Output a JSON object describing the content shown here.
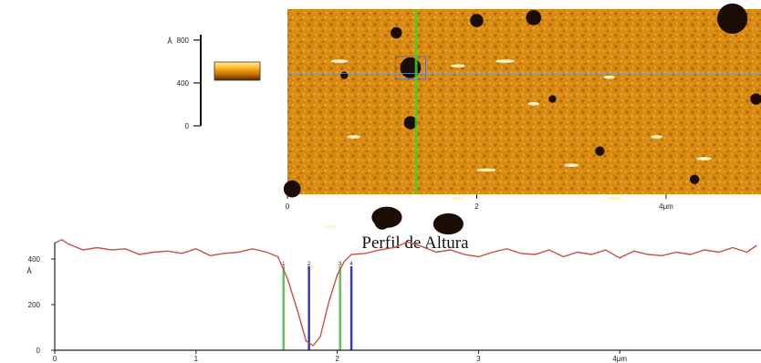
{
  "chart_data": [
    {
      "type": "heatmap",
      "title": "",
      "colorbar": {
        "unit": "Å",
        "ticks": [
          "0",
          "400",
          "800"
        ],
        "tick_values": [
          0,
          400,
          800
        ],
        "range": [
          0,
          850
        ],
        "colors": [
          "#5a2400",
          "#c06a00",
          "#ffb020",
          "#fff2a0"
        ]
      },
      "x_axis": {
        "ticks": [
          "0",
          "2",
          "4μm"
        ],
        "tick_values": [
          0,
          2,
          4
        ],
        "range": [
          0,
          5.6
        ]
      },
      "colors": {
        "base": "#d98a10",
        "pit": "#1a0d05",
        "bright": "#fff4c8",
        "scan_line": "#33dd22"
      },
      "features": {
        "pits_um": [
          {
            "x": 1.15,
            "y": 0.25,
            "r": 0.06
          },
          {
            "x": 2.0,
            "y": 0.12,
            "r": 0.07
          },
          {
            "x": 2.6,
            "y": 0.09,
            "r": 0.08
          },
          {
            "x": 4.7,
            "y": 0.1,
            "r": 0.16
          },
          {
            "x": 1.3,
            "y": 1.2,
            "r": 0.07
          },
          {
            "x": 3.3,
            "y": 1.5,
            "r": 0.05
          },
          {
            "x": 4.95,
            "y": 0.95,
            "r": 0.06
          },
          {
            "x": 5.5,
            "y": 0.35,
            "r": 0.05
          },
          {
            "x": 0.05,
            "y": 1.9,
            "r": 0.09
          },
          {
            "x": 1.0,
            "y": 2.25,
            "r": 0.08
          },
          {
            "x": 4.3,
            "y": 1.8,
            "r": 0.05
          },
          {
            "x": 0.6,
            "y": 0.7,
            "r": 0.04
          },
          {
            "x": 2.8,
            "y": 0.95,
            "r": 0.04
          }
        ],
        "selected_pit_um": {
          "x": 1.3,
          "y": 0.62,
          "r": 0.11
        },
        "large_pits_um": [
          {
            "x": 1.05,
            "y": 2.2,
            "r": 0.16
          },
          {
            "x": 1.7,
            "y": 2.27,
            "r": 0.16
          }
        ],
        "bright_flecks_um": [
          {
            "x": 0.55,
            "y": 0.55,
            "w": 0.18
          },
          {
            "x": 1.8,
            "y": 0.6,
            "w": 0.15
          },
          {
            "x": 2.3,
            "y": 0.55,
            "w": 0.2
          },
          {
            "x": 5.35,
            "y": 0.85,
            "w": 0.18
          },
          {
            "x": 3.4,
            "y": 0.72,
            "w": 0.12
          },
          {
            "x": 2.6,
            "y": 1.0,
            "w": 0.12
          },
          {
            "x": 0.7,
            "y": 1.35,
            "w": 0.14
          },
          {
            "x": 3.9,
            "y": 1.35,
            "w": 0.12
          },
          {
            "x": 4.4,
            "y": 1.58,
            "w": 0.16
          },
          {
            "x": 2.1,
            "y": 1.7,
            "w": 0.2
          },
          {
            "x": 3.0,
            "y": 1.65,
            "w": 0.15
          },
          {
            "x": 1.8,
            "y": 2.0,
            "w": 0.14
          },
          {
            "x": 0.45,
            "y": 2.3,
            "w": 0.14
          },
          {
            "x": 3.45,
            "y": 2.0,
            "w": 0.15
          }
        ],
        "scan_line_x_um": 1.36,
        "horizontal_line_y_um": 0.68
      }
    },
    {
      "type": "line",
      "title": "Perfil de Altura",
      "ylabel": "Å",
      "xlabel": "",
      "xlim": [
        0,
        5.0
      ],
      "ylim": [
        0,
        600
      ],
      "x_ticks": [
        "0",
        "1",
        "2",
        "3",
        "4μm"
      ],
      "x_tick_values": [
        0,
        1,
        2,
        3,
        4
      ],
      "y_ticks": [
        "0",
        "200",
        "400"
      ],
      "y_tick_values": [
        0,
        200,
        400
      ],
      "series": [
        {
          "color": "#c8504a",
          "x": [
            0,
            0.05,
            0.1,
            0.2,
            0.3,
            0.4,
            0.5,
            0.6,
            0.7,
            0.8,
            0.9,
            1.0,
            1.1,
            1.2,
            1.3,
            1.4,
            1.5,
            1.58,
            1.65,
            1.72,
            1.78,
            1.83,
            1.88,
            1.94,
            2.0,
            2.05,
            2.1,
            2.2,
            2.3,
            2.4,
            2.5,
            2.6,
            2.7,
            2.8,
            2.9,
            3.0,
            3.1,
            3.2,
            3.3,
            3.4,
            3.5,
            3.6,
            3.7,
            3.8,
            3.9,
            4.0,
            4.1,
            4.2,
            4.3,
            4.4,
            4.5,
            4.6,
            4.7,
            4.8,
            4.9,
            4.97
          ],
          "values": [
            470,
            485,
            465,
            440,
            450,
            440,
            445,
            420,
            430,
            435,
            425,
            445,
            415,
            425,
            430,
            445,
            430,
            410,
            310,
            170,
            40,
            20,
            60,
            210,
            330,
            390,
            420,
            425,
            440,
            450,
            475,
            455,
            430,
            440,
            420,
            410,
            430,
            445,
            425,
            420,
            440,
            410,
            430,
            420,
            440,
            405,
            435,
            420,
            415,
            430,
            420,
            440,
            430,
            450,
            430,
            460
          ]
        }
      ],
      "markers": [
        {
          "label": "1",
          "x": 1.62,
          "color": "#5ac85a"
        },
        {
          "label": "2",
          "x": 1.8,
          "color": "#3a3ab4"
        },
        {
          "label": "3",
          "x": 2.02,
          "color": "#5ac85a"
        },
        {
          "label": "4",
          "x": 2.1,
          "color": "#3a3ab4"
        }
      ]
    }
  ]
}
